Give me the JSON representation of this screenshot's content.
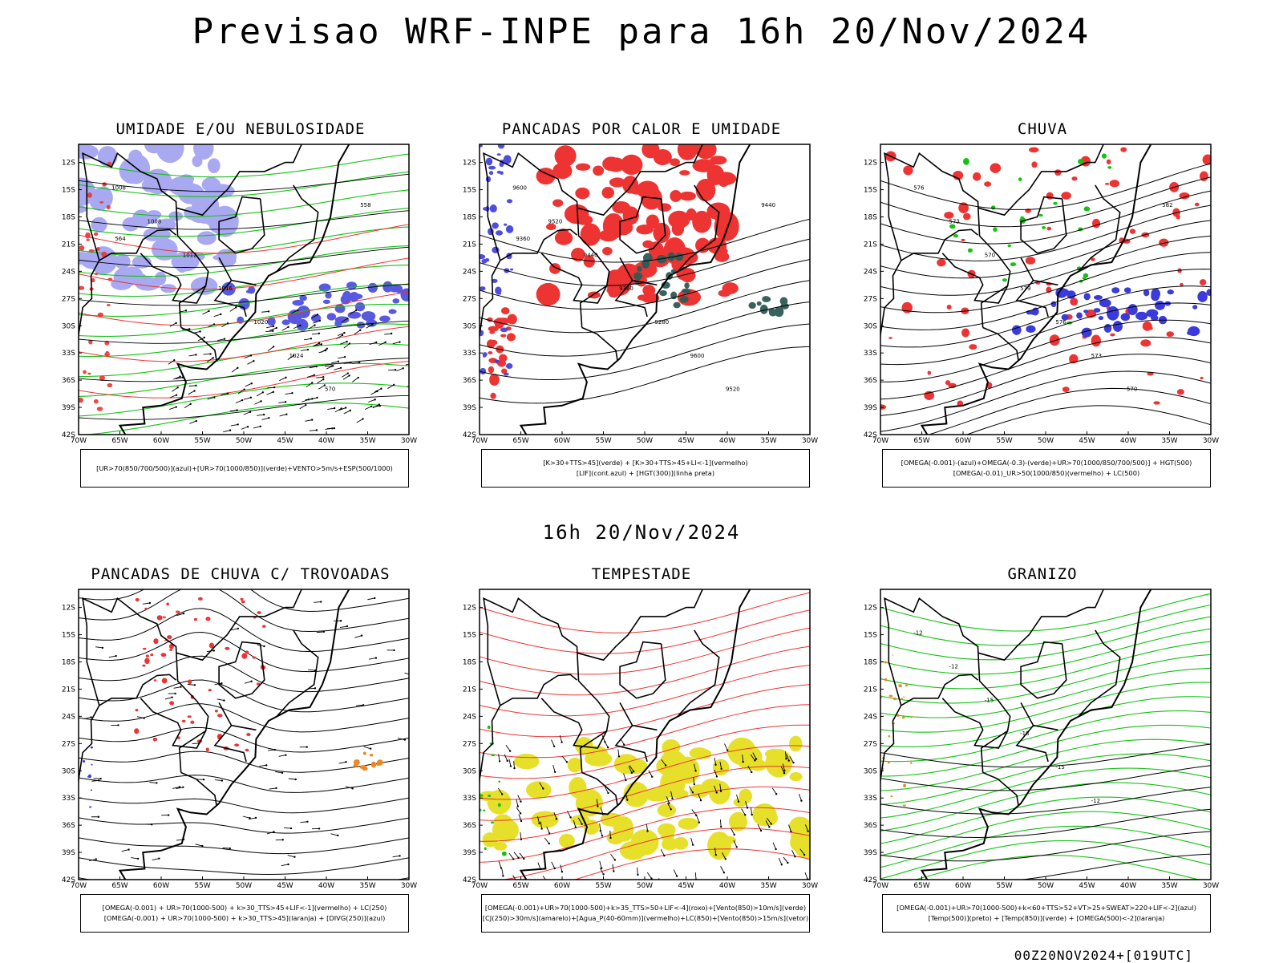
{
  "title": "Previsao WRF-INPE  para 16h 20/Nov/2024",
  "subtitle": "16h 20/Nov/2024",
  "footer": "00Z20NOV2024+[019UTC]",
  "axes": {
    "lat_labels": [
      "12S",
      "15S",
      "18S",
      "21S",
      "24S",
      "27S",
      "30S",
      "33S",
      "36S",
      "39S",
      "42S"
    ],
    "lon_labels": [
      "70W",
      "65W",
      "60W",
      "55W",
      "50W",
      "45W",
      "40W",
      "35W",
      "30W"
    ]
  },
  "colors": {
    "blue_fill": "#9b9bf0",
    "dark_blue": "#3b3bdb",
    "green": "#13c213",
    "red": "#ee3333",
    "orange": "#ee8822",
    "yellow": "#e6e02a",
    "teal": "#2e5a55",
    "contour": "#000000"
  },
  "panels": [
    {
      "title": "UMIDADE E/OU NEBULOSIDADE",
      "legend": [
        "[UR>70(850/700/500)](azul)+[UR>70(1000/850)](verde)+VENTO>5m/s+ESP(500/1000)"
      ],
      "contour_labels": [
        "1008",
        "1008",
        "1012",
        "1016",
        "1020",
        "1024",
        "570",
        "558",
        "564"
      ]
    },
    {
      "title": "PANCADAS POR CALOR E UMIDADE",
      "legend": [
        "[K>30+TTS>45](verde)  +  [K>30+TTS>45+LI<-1](vermelho)",
        "[LIF](cont.azul)  +  [HGT(300)](linha preta)"
      ],
      "contour_labels": [
        "9600",
        "9520",
        "9440",
        "9360",
        "9280",
        "9600",
        "9520",
        "9440",
        "9360"
      ]
    },
    {
      "title": "CHUVA",
      "legend": [
        "[OMEGA(-0.001)-(azul)+OMEGA(-0.3)-(verde)+UR>70(1000/850/700/500)]  +  HGT(500)",
        "[OMEGA(-0.01)_UR>50(1000/850)(vermelho)  +  LC(500)"
      ],
      "contour_labels": [
        "576",
        "573",
        "570",
        "579",
        "576",
        "573",
        "570",
        "582"
      ]
    },
    {
      "title": "PANCADAS DE CHUVA C/ TROVOADAS",
      "legend": [
        "[OMEGA(-0.001)  +  UR>70(1000-500)  +  k>30_TTS>45+LIF<-1](vermelho)  +  LC(250)",
        "[OMEGA(-0.001)  +  UR>70(1000-500)  +  k>30_TTS>45](laranja)  +  [DIVG(250)](azul)"
      ],
      "contour_labels": []
    },
    {
      "title": "TEMPESTADE",
      "legend": [
        "[OMEGA(-0.001)+UR>70(1000-500)+k>35_TTS>50+LIF<-4](roxo)+[Vento(850)>10m/s](verde)",
        "[CJ(250)>30m/s](amarelo)+[Agua_P(40-60mm)](vermelho)+LC(850)+[Vento(850)>15m/s](vetor)"
      ],
      "contour_labels": []
    },
    {
      "title": "GRANIZO",
      "legend": [
        "[OMEGA(-0.001)+UR>70(1000-500)+k<60+TTS>52+VT>25+SWEAT>220+LIF<-2](azul)",
        "[Temp(500)](preto)  +  [Temp(850)](verde)  +  [OMEGA(500)<-2](laranja)"
      ],
      "contour_labels": [
        "-12",
        "-12",
        "-15",
        "-18",
        "-15",
        "-12"
      ]
    }
  ]
}
